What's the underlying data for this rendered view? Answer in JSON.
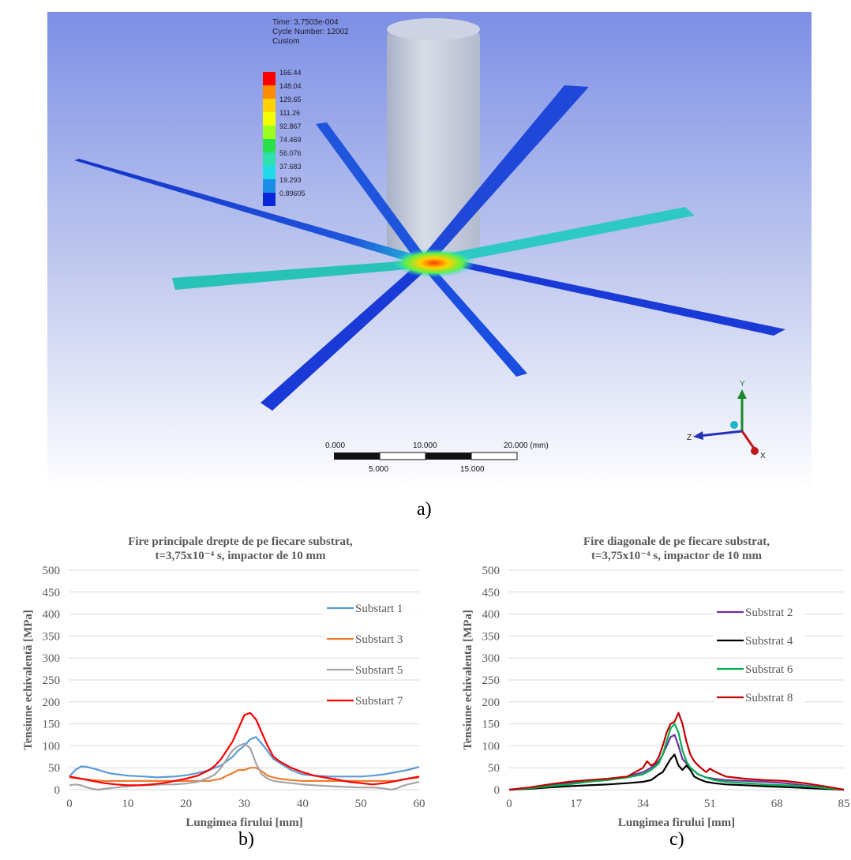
{
  "simulation": {
    "header": [
      "Time: 3.7503e-004",
      "Cycle Number: 12002",
      "Custom"
    ],
    "legend_values": [
      "166.44",
      "148.04",
      "129.65",
      "111.26",
      "92.867",
      "74.469",
      "56.076",
      "37.683",
      "19.293",
      "0.89605"
    ],
    "legend_colors": [
      "#ff0000",
      "#ff8c00",
      "#ffd200",
      "#f2ff00",
      "#9cff1e",
      "#29e04a",
      "#2ee0b0",
      "#22d9e6",
      "#1a8ee6",
      "#0a25d8"
    ],
    "scale_labels_top": [
      "0.000",
      "10.000",
      "20.000 (mm)"
    ],
    "scale_labels_bottom": [
      "5.000",
      "15.000"
    ],
    "triad_labels": [
      "Y",
      "Z",
      "X"
    ],
    "colors": {
      "bg_top": "#7d8fe6",
      "bg_bottom": "#ffffff",
      "wire": "#1a3ad8",
      "cylinder": "#c6ccdc"
    }
  },
  "captions": {
    "a": "a)",
    "b": "b)",
    "c": "c)"
  },
  "chart_data": [
    {
      "type": "line",
      "title": [
        "Fire principale drepte de pe fiecare substrat,",
        "t=3,75x10⁻⁴ s,  impactor de 10 mm"
      ],
      "xlabel": "Lungimea firului [mm]",
      "ylabel": "Tensiune echivalentă [MPa]",
      "xlim": [
        0,
        60
      ],
      "ylim": [
        0,
        500
      ],
      "xticks": [
        0,
        10,
        20,
        30,
        40,
        50,
        60
      ],
      "yticks": [
        0,
        50,
        100,
        150,
        200,
        250,
        300,
        350,
        400,
        450,
        500
      ],
      "grid": true,
      "legend_position": "right",
      "series": [
        {
          "name": "Substart 1",
          "color": "#5b9bd5",
          "x": [
            0,
            1,
            2,
            3,
            5,
            7,
            10,
            13,
            15,
            18,
            20,
            22,
            24,
            26,
            28,
            29,
            30,
            31,
            32,
            33,
            35,
            38,
            40,
            42,
            45,
            48,
            50,
            52,
            54,
            56,
            58,
            60
          ],
          "y": [
            30,
            45,
            53,
            52,
            45,
            37,
            32,
            30,
            28,
            30,
            33,
            38,
            45,
            55,
            75,
            90,
            100,
            115,
            120,
            105,
            70,
            45,
            35,
            32,
            30,
            30,
            30,
            32,
            35,
            40,
            45,
            52
          ]
        },
        {
          "name": "Substart 3",
          "color": "#ed7d31",
          "x": [
            0,
            2,
            4,
            6,
            8,
            10,
            12,
            14,
            16,
            18,
            20,
            22,
            24,
            26,
            27,
            28,
            29,
            30,
            31,
            32,
            33,
            34,
            35,
            36,
            38,
            40,
            42,
            45,
            48,
            50,
            52,
            54,
            56,
            58,
            60
          ],
          "y": [
            28,
            25,
            22,
            20,
            20,
            20,
            20,
            20,
            20,
            20,
            20,
            20,
            20,
            25,
            32,
            38,
            45,
            45,
            50,
            50,
            42,
            32,
            28,
            25,
            22,
            20,
            20,
            20,
            20,
            20,
            20,
            20,
            20,
            25,
            28
          ]
        },
        {
          "name": "Substart 5",
          "color": "#a5a5a5",
          "x": [
            0,
            1,
            2,
            3,
            4,
            5,
            6,
            8,
            10,
            12,
            14,
            16,
            18,
            20,
            22,
            24,
            25,
            26,
            27,
            28,
            29,
            30,
            31,
            32,
            33,
            34,
            35,
            36,
            38,
            40,
            42,
            45,
            48,
            50,
            52,
            54,
            55,
            56,
            57,
            58,
            59,
            60
          ],
          "y": [
            10,
            12,
            10,
            5,
            2,
            0,
            2,
            5,
            8,
            10,
            10,
            12,
            12,
            14,
            18,
            28,
            35,
            50,
            70,
            90,
            100,
            105,
            95,
            60,
            35,
            25,
            20,
            18,
            15,
            12,
            10,
            8,
            6,
            5,
            5,
            3,
            0,
            2,
            8,
            12,
            15,
            18
          ]
        },
        {
          "name": "Substart 7",
          "color": "#ff0000",
          "x": [
            0,
            2,
            4,
            6,
            8,
            10,
            12,
            14,
            16,
            18,
            20,
            22,
            24,
            25,
            26,
            27,
            28,
            29,
            30,
            31,
            32,
            33,
            34,
            35,
            36,
            38,
            40,
            42,
            45,
            48,
            50,
            52,
            54,
            56,
            58,
            60
          ],
          "y": [
            30,
            25,
            20,
            15,
            12,
            10,
            10,
            12,
            15,
            20,
            25,
            32,
            45,
            55,
            70,
            90,
            110,
            140,
            170,
            175,
            160,
            130,
            100,
            75,
            65,
            50,
            40,
            32,
            25,
            18,
            15,
            12,
            15,
            20,
            25,
            30
          ]
        }
      ]
    },
    {
      "type": "line",
      "title": [
        "Fire diagonale de pe fiecare substrat,",
        "t=3,75x10⁻⁴ s, impactor de 10 mm"
      ],
      "xlabel": "Lungimea firului [mm]",
      "ylabel": "Tensiune echivalenta [MPa]",
      "xlim": [
        0,
        85
      ],
      "ylim": [
        0,
        500
      ],
      "xticks": [
        0,
        17,
        34,
        51,
        68,
        85
      ],
      "yticks": [
        0,
        50,
        100,
        150,
        200,
        250,
        300,
        350,
        400,
        450,
        500
      ],
      "grid": true,
      "legend_position": "right",
      "series": [
        {
          "name": "Substrat 2",
          "color": "#7030a0",
          "x": [
            0,
            5,
            10,
            15,
            20,
            25,
            30,
            34,
            36,
            38,
            39,
            40,
            41,
            42,
            43,
            44,
            45,
            46,
            48,
            50,
            52,
            55,
            60,
            65,
            70,
            75,
            80,
            85
          ],
          "y": [
            0,
            4,
            10,
            15,
            20,
            25,
            30,
            40,
            50,
            65,
            80,
            100,
            120,
            125,
            100,
            70,
            60,
            50,
            35,
            28,
            25,
            22,
            20,
            18,
            15,
            10,
            5,
            0
          ]
        },
        {
          "name": "Substrat 4",
          "color": "#000000",
          "x": [
            0,
            5,
            10,
            15,
            20,
            25,
            30,
            34,
            36,
            37,
            38,
            39,
            40,
            41,
            42,
            43,
            44,
            45,
            46,
            47,
            48,
            50,
            52,
            55,
            60,
            65,
            70,
            75,
            80,
            85
          ],
          "y": [
            0,
            2,
            5,
            8,
            10,
            12,
            15,
            18,
            22,
            28,
            35,
            40,
            55,
            70,
            80,
            55,
            45,
            55,
            45,
            30,
            25,
            18,
            15,
            12,
            10,
            8,
            6,
            4,
            2,
            0
          ]
        },
        {
          "name": "Substrat 6",
          "color": "#00b050",
          "x": [
            0,
            5,
            10,
            15,
            20,
            25,
            30,
            34,
            36,
            38,
            39,
            40,
            41,
            42,
            43,
            44,
            45,
            46,
            48,
            50,
            52,
            55,
            60,
            65,
            70,
            75,
            80,
            85
          ],
          "y": [
            0,
            3,
            8,
            12,
            18,
            22,
            28,
            35,
            45,
            60,
            80,
            110,
            140,
            150,
            130,
            90,
            65,
            50,
            35,
            28,
            22,
            18,
            15,
            12,
            10,
            8,
            4,
            0
          ]
        },
        {
          "name": "Substrat 8",
          "color": "#c00000",
          "x": [
            0,
            5,
            10,
            15,
            20,
            25,
            30,
            32,
            34,
            35,
            36,
            37,
            38,
            39,
            40,
            41,
            42,
            43,
            44,
            45,
            46,
            47,
            48,
            50,
            51,
            52,
            55,
            60,
            65,
            70,
            75,
            80,
            85
          ],
          "y": [
            0,
            5,
            12,
            18,
            22,
            25,
            30,
            40,
            50,
            65,
            55,
            60,
            75,
            100,
            130,
            150,
            155,
            175,
            150,
            110,
            80,
            65,
            55,
            40,
            48,
            42,
            30,
            25,
            22,
            20,
            15,
            8,
            0
          ]
        }
      ]
    }
  ]
}
